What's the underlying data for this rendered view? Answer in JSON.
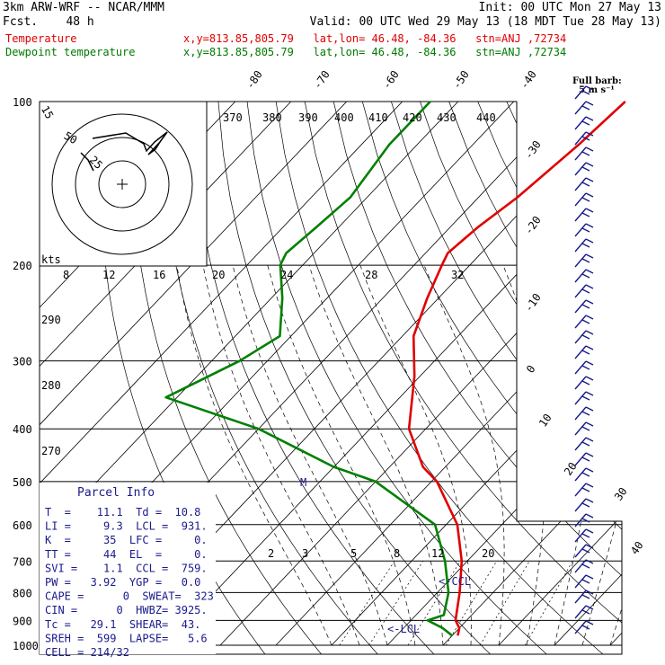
{
  "header": {
    "title": "3km ARW-WRF -- NCAR/MMM",
    "init": "Init: 00 UTC Mon 27 May 13",
    "fcst": "Fcst.    48 h",
    "valid": "Valid: 00 UTC Wed 29 May 13 (18 MDT Tue 28 May 13)",
    "temp_label": "Temperature",
    "temp_info": "x,y=813.85,805.79   lat,lon= 46.48, -84.36   stn=ANJ ,72734",
    "dew_label": "Dewpoint temperature",
    "dew_info": "x,y=813.85,805.79   lat,lon= 46.48, -84.36   stn=ANJ ,72734"
  },
  "colors": {
    "temperature": "#e00000",
    "dewpoint": "#008000",
    "parcel_box": "#1a1a8c",
    "wind_barbs": "#1a1a8c"
  },
  "chart_data": {
    "type": "line",
    "y_axis": {
      "label": "",
      "scale": "log",
      "ticks": [
        "100",
        "200",
        "300",
        "400",
        "500",
        "600",
        "700",
        "800",
        "900",
        "1000"
      ]
    },
    "skewed_temperature_labels": [
      "-80",
      "-70",
      "-60",
      "-50",
      "-40",
      "-30",
      "-20",
      "-10",
      "0",
      "10",
      "20",
      "30",
      "40"
    ],
    "theta_labels": [
      "370",
      "380",
      "390",
      "400",
      "410",
      "420",
      "430",
      "440"
    ],
    "mixing_ratio_labels": [
      "2",
      "3",
      "5",
      "8",
      "12",
      "20"
    ],
    "hodograph": {
      "speed_rings": [
        "15",
        "50",
        "25"
      ],
      "speed_scale_label": "kts",
      "speed_ticks": [
        "8",
        "12",
        "16",
        "20",
        "24",
        "28",
        "32"
      ]
    },
    "theta_e_labels": [
      "290",
      "280",
      "270"
    ],
    "series": [
      {
        "name": "Temperature",
        "color": "#e00000",
        "points": [
          [
            100,
            -50
          ],
          [
            120,
            -51
          ],
          [
            150,
            -53
          ],
          [
            170,
            -55
          ],
          [
            190,
            -56
          ],
          [
            200,
            -55
          ],
          [
            230,
            -52
          ],
          [
            270,
            -48
          ],
          [
            320,
            -41
          ],
          [
            400,
            -33
          ],
          [
            470,
            -24
          ],
          [
            500,
            -19
          ],
          [
            600,
            -8
          ],
          [
            700,
            -1
          ],
          [
            800,
            4
          ],
          [
            900,
            8
          ],
          [
            930,
            10
          ],
          [
            960,
            11
          ]
        ]
      },
      {
        "name": "Dewpoint temperature",
        "color": "#008000",
        "points": [
          [
            100,
            -85
          ],
          [
            120,
            -85
          ],
          [
            150,
            -83
          ],
          [
            170,
            -84
          ],
          [
            190,
            -85
          ],
          [
            200,
            -84
          ],
          [
            230,
            -78
          ],
          [
            270,
            -72
          ],
          [
            300,
            -75
          ],
          [
            350,
            -82
          ],
          [
            400,
            -60
          ],
          [
            470,
            -40
          ],
          [
            500,
            -30
          ],
          [
            600,
            -12
          ],
          [
            700,
            -4
          ],
          [
            800,
            2
          ],
          [
            880,
            5
          ],
          [
            900,
            3
          ],
          [
            930,
            7
          ],
          [
            960,
            10
          ]
        ]
      }
    ],
    "markers": {
      "lcl": "LCL",
      "ccl": "CCL"
    },
    "wind_barb_legend": {
      "title": "Full barb:",
      "value": "5 m s⁻¹"
    }
  },
  "parcel_info": {
    "title": "Parcel Info",
    "rows": [
      "T  =    11.1  Td =  10.8",
      "LI =     9.3  LCL =  931.",
      "K  =     35  LFC =     0.",
      "TT =     44  EL  =     0.",
      "SVI =    1.1  CCL =  759.",
      "PW =   3.92  YGP =   0.0",
      "CAPE =      0  SWEAT=  323",
      "CIN =      0  HWBZ= 3925.",
      "Tc =   29.1  SHEAR=  43.",
      "SREH =  599  LAPSE=   5.6",
      "CELL = 214/32"
    ]
  }
}
